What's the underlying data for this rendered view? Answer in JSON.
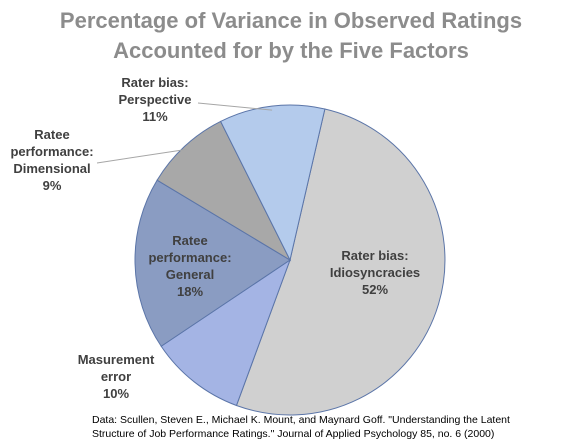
{
  "chart_data": {
    "type": "pie",
    "title": [
      "Percentage of Variance in Observed Ratings",
      "Accounted for by the Five Factors"
    ],
    "slices": [
      {
        "label": [
          "Rater bias:",
          "Idiosyncracies"
        ],
        "value": 52,
        "value_label": "52%",
        "color": "#d0d0d0"
      },
      {
        "label": [
          "Masurement",
          "error"
        ],
        "value": 10,
        "value_label": "10%",
        "color": "#a4b4e4"
      },
      {
        "label": [
          "Ratee",
          "performance:",
          "General"
        ],
        "value": 18,
        "value_label": "18%",
        "color": "#8a9cc2"
      },
      {
        "label": [
          "Ratee",
          "performance:",
          "Dimensional"
        ],
        "value": 9,
        "value_label": "9%",
        "color": "#a8a8a8"
      },
      {
        "label": [
          "Rater bias:",
          "Perspective"
        ],
        "value": 11,
        "value_label": "11%",
        "color": "#b4cbec"
      }
    ],
    "legend": "none",
    "start_angle_deg": 13,
    "direction": "clockwise"
  },
  "source": [
    "Data: Scullen, Steven E., Michael K. Mount, and Maynard Goff. \"Understanding the Latent",
    "Structure of Job Performance Ratings.\" Journal of Applied Psychology 85, no. 6 (2000)"
  ]
}
